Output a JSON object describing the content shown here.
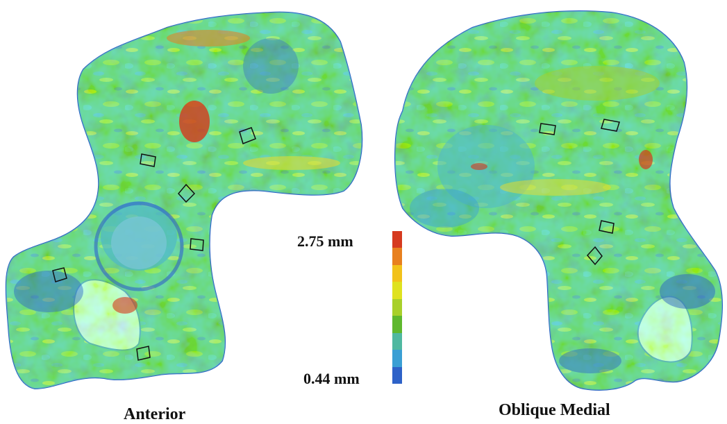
{
  "views": {
    "anterior": "Anterior",
    "oblique_medial": "Oblique Medial"
  },
  "scale": {
    "max_label": "2.75 mm",
    "min_label": "0.44 mm",
    "colors": [
      "#d63a1f",
      "#e8801f",
      "#f2c21a",
      "#dfe21f",
      "#a8d02a",
      "#5fb82e",
      "#4fb8a0",
      "#3a9fd4",
      "#2e62c8"
    ]
  },
  "surface_colors": {
    "base_blue": "#3f9fd0",
    "base_green": "#4fb36a",
    "highlight_yellow": "#e9dd2c",
    "hotspot_red": "#d43a1c",
    "deep_blue": "#2c64c4"
  }
}
